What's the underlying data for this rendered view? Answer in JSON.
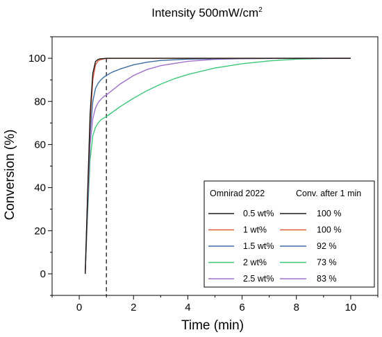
{
  "chart_data": {
    "type": "line",
    "title": "Intensity 500mW/cm",
    "title_superscript": "2",
    "xlabel": "Time (min)",
    "ylabel": "Conversion (%)",
    "xlim": [
      -1,
      11
    ],
    "ylim": [
      -10,
      110
    ],
    "xticks": [
      0,
      2,
      4,
      6,
      8,
      10
    ],
    "yticks": [
      0,
      20,
      40,
      60,
      80,
      100
    ],
    "grid": false,
    "reference_line": {
      "x": 1,
      "style": "dashed"
    },
    "legend": {
      "placement": "bottom-right",
      "header_left": "Omnirad 2022",
      "header_right": "Conv. after 1 min"
    },
    "series": [
      {
        "name": "0.5 wt%",
        "conversion_after_1min": "100 %",
        "color": "#1a1a1a",
        "x": [
          0.22,
          0.3,
          0.4,
          0.5,
          0.6,
          0.7,
          0.8,
          0.9,
          1.0,
          1.5,
          2,
          4,
          6,
          8,
          10
        ],
        "y": [
          0,
          34,
          74,
          93,
          98.5,
          99.5,
          99.8,
          99.9,
          100,
          100,
          100,
          100,
          100,
          100,
          100
        ]
      },
      {
        "name": "1 wt%",
        "conversion_after_1min": "100 %",
        "color": "#e05a3a",
        "x": [
          0.22,
          0.3,
          0.4,
          0.5,
          0.6,
          0.7,
          0.8,
          0.9,
          1.0,
          1.5,
          2,
          4,
          6,
          8,
          10
        ],
        "y": [
          0,
          32,
          70,
          90,
          97,
          98.8,
          99.4,
          99.7,
          99.9,
          100,
          100,
          100,
          100,
          100,
          100
        ]
      },
      {
        "name": "1.5 wt%",
        "conversion_after_1min": "92 %",
        "color": "#3b6ea5",
        "x": [
          0.22,
          0.3,
          0.4,
          0.5,
          0.6,
          0.7,
          0.8,
          0.9,
          1.0,
          1.2,
          1.5,
          2,
          2.5,
          3,
          4,
          5,
          6,
          8,
          10
        ],
        "y": [
          0,
          29,
          65,
          80,
          86,
          88.5,
          90,
          91.2,
          92,
          93.5,
          95,
          97,
          98.2,
          99,
          99.6,
          99.8,
          99.9,
          100,
          100
        ]
      },
      {
        "name": "2 wt%",
        "conversion_after_1min": "73 %",
        "color": "#3cc87a",
        "x": [
          0.22,
          0.3,
          0.4,
          0.5,
          0.6,
          0.7,
          0.8,
          0.9,
          1.0,
          1.5,
          2,
          2.5,
          3,
          3.5,
          4,
          5,
          6,
          7,
          8,
          9,
          10
        ],
        "y": [
          0,
          25,
          53,
          64,
          68,
          70,
          71.5,
          72.3,
          73,
          77.5,
          81.5,
          85,
          88,
          90.5,
          92.5,
          95.5,
          97.5,
          98.8,
          99.6,
          99.9,
          100
        ]
      },
      {
        "name": "2.5 wt%",
        "conversion_after_1min": "83 %",
        "color": "#a070d0",
        "x": [
          0.22,
          0.3,
          0.4,
          0.5,
          0.6,
          0.7,
          0.8,
          0.9,
          1.0,
          1.5,
          2,
          2.5,
          3,
          4,
          5,
          6,
          8,
          10
        ],
        "y": [
          0,
          27,
          60,
          72,
          77,
          79.5,
          81,
          82.2,
          83,
          88,
          92,
          94.8,
          96.6,
          98.6,
          99.5,
          99.8,
          100,
          100
        ]
      }
    ]
  }
}
